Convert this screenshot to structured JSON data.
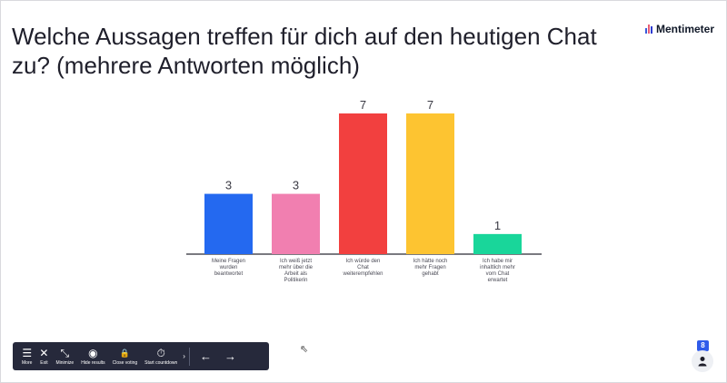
{
  "header": {
    "title": "Welche Aussagen treffen für dich auf den heutigen Chat zu? (mehrere Antworten möglich)",
    "brand": "Mentimeter",
    "brand_colors": [
      "#3b5bdb",
      "#e85d75",
      "#2f3ad0"
    ]
  },
  "chart_data": {
    "type": "bar",
    "categories": [
      "Meine Fragen wurden beantwortet",
      "Ich weiß jetzt mehr über die Arbeit als Politikerin",
      "Ich würde den Chat weiterempfehlen",
      "Ich hätte noch mehr Fragen gehabt",
      "Ich habe mir inhaltlich mehr vom Chat erwartet"
    ],
    "category_lines": [
      [
        "Meine Fragen",
        "wurden",
        "beantwortet"
      ],
      [
        "Ich weiß jetzt",
        "mehr über die",
        "Arbeit als",
        "Politikerin"
      ],
      [
        "Ich würde den",
        "Chat",
        "weiterempfehlen"
      ],
      [
        "Ich hätte noch",
        "mehr Fragen",
        "gehabt"
      ],
      [
        "Ich habe mir",
        "inhaltlich mehr",
        "vom Chat",
        "erwartet"
      ]
    ],
    "values": [
      3,
      3,
      7,
      7,
      1
    ],
    "colors": [
      "#2469f0",
      "#f17fb0",
      "#f2403f",
      "#fdc431",
      "#19d69a"
    ],
    "ylim": [
      0,
      7
    ],
    "grid": false,
    "legend": "none"
  },
  "toolbar": {
    "items": [
      {
        "label": "More",
        "icon": "menu-icon",
        "glyph": "☰"
      },
      {
        "label": "Exit",
        "icon": "close-icon",
        "glyph": "✕"
      },
      {
        "label": "Minimize",
        "icon": "minimize-icon",
        "glyph": "⤡"
      },
      {
        "label": "Hide results",
        "icon": "eye-off-icon",
        "glyph": "◉"
      },
      {
        "label": "Close voting",
        "icon": "lock-icon",
        "glyph": "🔒"
      },
      {
        "label": "Start countdown",
        "icon": "timer-icon",
        "glyph": "⏱"
      }
    ],
    "prev_icon": "arrow-left-icon",
    "next_icon": "arrow-right-icon",
    "prev_glyph": "←",
    "next_glyph": "→",
    "chevron_glyph": "›"
  },
  "participants": {
    "count": "8",
    "icon": "person-icon"
  }
}
